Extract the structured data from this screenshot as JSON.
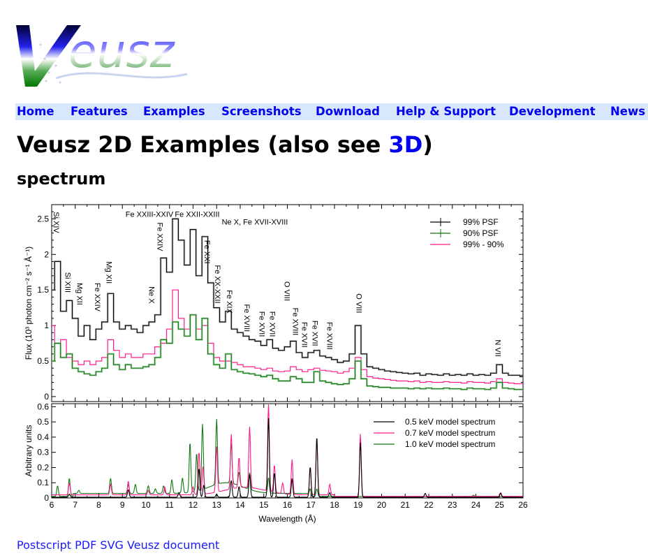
{
  "logo_text": "Veusz",
  "nav": [
    {
      "label": "Home"
    },
    {
      "label": "Features"
    },
    {
      "label": "Examples"
    },
    {
      "label": "Screenshots"
    },
    {
      "label": "Download"
    },
    {
      "label": "Help & Support"
    },
    {
      "label": "Development"
    },
    {
      "label": "News"
    }
  ],
  "page_title": {
    "text": "Veusz 2D Examples (also see ",
    "link": "3D",
    "close": ")"
  },
  "section_title": "spectrum",
  "downloads": [
    {
      "label": "Postscript"
    },
    {
      "label": "PDF"
    },
    {
      "label": "SVG"
    },
    {
      "label": "Veusz document"
    }
  ],
  "colors": {
    "black": "#000000",
    "green": "#117711",
    "pink": "#ff1a8c",
    "nav_bg": "#d8e7fb",
    "link": "#0000ee"
  },
  "chart_data": [
    {
      "type": "line",
      "panel": "top",
      "ylabel": "Flux (10³ photon cm⁻² s⁻¹ Å⁻¹)",
      "xlim": [
        6,
        26
      ],
      "ylim": [
        -0.07,
        2.7
      ],
      "yticks": [
        "0",
        "0.5",
        "1",
        "1.5",
        "2",
        "2.5"
      ],
      "legend_position": "top-right",
      "x_start": 6,
      "x_step": 0.25,
      "series": [
        {
          "name": "99% PSF",
          "color": "#000000",
          "values": [
            1.5,
            1.9,
            1.2,
            1.35,
            1.1,
            0.85,
            1.0,
            0.8,
            0.95,
            1.05,
            1.45,
            1.05,
            0.95,
            1.0,
            0.95,
            0.9,
            1.0,
            1.05,
            1.15,
            1.95,
            1.75,
            2.5,
            2.2,
            1.85,
            2.35,
            1.7,
            2.25,
            1.6,
            1.25,
            1.05,
            1.2,
            0.95,
            0.9,
            0.85,
            0.8,
            0.78,
            0.72,
            0.8,
            0.68,
            0.65,
            0.7,
            0.78,
            0.62,
            0.55,
            0.62,
            0.65,
            0.57,
            0.55,
            0.52,
            0.48,
            0.5,
            0.6,
            1.0,
            0.6,
            0.42,
            0.4,
            0.38,
            0.36,
            0.35,
            0.34,
            0.33,
            0.32,
            0.33,
            0.3,
            0.32,
            0.31,
            0.3,
            0.32,
            0.3,
            0.31,
            0.3,
            0.32,
            0.3,
            0.31,
            0.3,
            0.33,
            0.45,
            0.33,
            0.3,
            0.3,
            0.28
          ]
        },
        {
          "name": "90% PSF",
          "color": "#117711",
          "values": [
            0.5,
            0.75,
            0.55,
            0.6,
            0.4,
            0.35,
            0.32,
            0.3,
            0.35,
            0.4,
            0.6,
            0.45,
            0.38,
            0.45,
            0.4,
            0.4,
            0.42,
            0.45,
            0.55,
            0.8,
            0.75,
            1.05,
            0.95,
            0.85,
            1.15,
            0.8,
            1.1,
            0.6,
            0.45,
            0.4,
            0.6,
            0.38,
            0.35,
            0.33,
            0.32,
            0.3,
            0.28,
            0.3,
            0.25,
            0.22,
            0.22,
            0.28,
            0.25,
            0.2,
            0.2,
            0.35,
            0.22,
            0.2,
            0.18,
            0.17,
            0.18,
            0.25,
            0.5,
            0.25,
            0.15,
            0.14,
            0.13,
            0.13,
            0.12,
            0.12,
            0.12,
            0.11,
            0.12,
            0.11,
            0.12,
            0.11,
            0.11,
            0.12,
            0.11,
            0.11,
            0.1,
            0.12,
            0.11,
            0.11,
            0.1,
            0.12,
            0.2,
            0.12,
            0.11,
            0.1,
            0.1
          ]
        },
        {
          "name": "99% - 90%",
          "color": "#ff1a8c",
          "values": [
            1.0,
            0.75,
            0.8,
            0.55,
            0.5,
            0.45,
            0.5,
            0.45,
            0.5,
            0.55,
            0.8,
            0.65,
            0.55,
            0.6,
            0.55,
            0.55,
            0.6,
            0.6,
            0.7,
            0.75,
            0.95,
            1.5,
            1.1,
            0.95,
            1.15,
            0.95,
            1.0,
            0.75,
            0.55,
            0.5,
            0.5,
            0.48,
            0.45,
            0.42,
            0.42,
            0.4,
            0.38,
            0.4,
            0.36,
            0.35,
            0.36,
            0.42,
            0.38,
            0.35,
            0.38,
            0.4,
            0.37,
            0.36,
            0.35,
            0.33,
            0.35,
            0.4,
            0.55,
            0.38,
            0.28,
            0.26,
            0.25,
            0.24,
            0.23,
            0.22,
            0.22,
            0.21,
            0.22,
            0.2,
            0.21,
            0.2,
            0.2,
            0.21,
            0.2,
            0.2,
            0.19,
            0.21,
            0.2,
            0.2,
            0.19,
            0.21,
            0.25,
            0.2,
            0.19,
            0.18,
            0.18
          ]
        }
      ],
      "annotations": [
        {
          "text": "Si XIV",
          "x": 6.2,
          "y": 2.6,
          "rotated": true
        },
        {
          "text": "Si XIII",
          "x": 6.7,
          "y": 1.75,
          "rotated": true
        },
        {
          "text": "Mg XII",
          "x": 7.2,
          "y": 1.6,
          "rotated": true
        },
        {
          "text": "Fe XXIV",
          "x": 7.95,
          "y": 1.6,
          "rotated": true
        },
        {
          "text": "Mg XII",
          "x": 8.45,
          "y": 1.9,
          "rotated": true
        },
        {
          "text": "Ne X",
          "x": 10.25,
          "y": 1.55,
          "rotated": true
        },
        {
          "text": "Fe XXIV",
          "x": 10.6,
          "y": 2.45,
          "rotated": true
        },
        {
          "text": "Fe XXIII-XXIV",
          "x": 10.8,
          "y": 2.53,
          "rotated": false
        },
        {
          "text": "Fe XXII-XXIII",
          "x": 12.4,
          "y": 2.53,
          "rotated": false
        },
        {
          "text": "Ne X, Fe XVII-XVIII",
          "x": 13.75,
          "y": 2.42,
          "rotated": false
        },
        {
          "text": "Fe XXI",
          "x": 12.6,
          "y": 2.2,
          "rotated": true
        },
        {
          "text": "Fe XX-XXII",
          "x": 13.05,
          "y": 1.85,
          "rotated": true
        },
        {
          "text": "Fe XIX",
          "x": 13.55,
          "y": 1.5,
          "rotated": true
        },
        {
          "text": "Fe XVIII",
          "x": 14.3,
          "y": 1.3,
          "rotated": true
        },
        {
          "text": "Fe XVII",
          "x": 15.05,
          "y": 1.2,
          "rotated": true
        },
        {
          "text": "Fe XVII",
          "x": 15.27,
          "y": 1.2,
          "rotated": true
        },
        {
          "text": "O VIII",
          "x": 16.0,
          "y": 1.62,
          "rotated": true
        },
        {
          "text": "Fe XVIII",
          "x": 16.35,
          "y": 1.25,
          "rotated": true
        },
        {
          "text": "Fe XVII",
          "x": 16.85,
          "y": 1.05,
          "rotated": true
        },
        {
          "text": "Fe XVII",
          "x": 17.07,
          "y": 1.07,
          "rotated": true
        },
        {
          "text": "Fe XVIII",
          "x": 17.8,
          "y": 1.05,
          "rotated": true
        },
        {
          "text": "O VIII",
          "x": 19.05,
          "y": 1.45,
          "rotated": true
        },
        {
          "text": "N VII",
          "x": 24.95,
          "y": 0.8,
          "rotated": true
        }
      ]
    },
    {
      "type": "line",
      "panel": "bottom",
      "xlabel": "Wavelength (Å)",
      "ylabel": "Arbitrary units",
      "xlim": [
        6,
        26
      ],
      "ylim": [
        0,
        0.62
      ],
      "xticks": [
        "6",
        "7",
        "8",
        "9",
        "10",
        "11",
        "12",
        "13",
        "14",
        "15",
        "16",
        "17",
        "18",
        "19",
        "20",
        "21",
        "22",
        "23",
        "24",
        "25",
        "26"
      ],
      "yticks": [
        "0",
        "0.1",
        "0.2",
        "0.3",
        "0.4",
        "0.5",
        "0.6"
      ],
      "legend_position": "top-right",
      "series": [
        {
          "name": "0.5 keV model spectrum",
          "color": "#000000",
          "peaks": [
            [
              6.75,
              0.02
            ],
            [
              9.25,
              0.05
            ],
            [
              11.4,
              0.03
            ],
            [
              12.25,
              0.19
            ],
            [
              12.45,
              0.08
            ],
            [
              13.0,
              0.02
            ],
            [
              13.62,
              0.11
            ],
            [
              13.95,
              0.07
            ],
            [
              14.4,
              0.15
            ],
            [
              15.2,
              0.52
            ],
            [
              15.45,
              0.16
            ],
            [
              16.2,
              0.12
            ],
            [
              16.97,
              0.2
            ],
            [
              17.25,
              0.4
            ],
            [
              17.8,
              0.03
            ],
            [
              19.1,
              0.36
            ],
            [
              21.85,
              0.025
            ],
            [
              25.05,
              0.025
            ]
          ]
        },
        {
          "name": "0.7 keV model spectrum",
          "color": "#ff1a8c",
          "peaks": [
            [
              6.75,
              0.08
            ],
            [
              8.5,
              0.07
            ],
            [
              9.25,
              0.09
            ],
            [
              10.1,
              0.03
            ],
            [
              10.8,
              0.05
            ],
            [
              12.0,
              0.05
            ],
            [
              12.25,
              0.28
            ],
            [
              12.42,
              0.18
            ],
            [
              13.0,
              0.3
            ],
            [
              13.62,
              0.36
            ],
            [
              13.95,
              0.2
            ],
            [
              14.4,
              0.4
            ],
            [
              15.2,
              0.57
            ],
            [
              15.45,
              0.18
            ],
            [
              15.8,
              0.07
            ],
            [
              16.2,
              0.23
            ],
            [
              16.97,
              0.18
            ],
            [
              17.25,
              0.37
            ],
            [
              17.8,
              0.07
            ],
            [
              19.1,
              0.41
            ],
            [
              25.05,
              0.025
            ]
          ]
        },
        {
          "name": "1.0 keV model spectrum",
          "color": "#117711",
          "peaks": [
            [
              6.25,
              0.07
            ],
            [
              6.75,
              0.12
            ],
            [
              7.15,
              0.02
            ],
            [
              8.5,
              0.1
            ],
            [
              9.25,
              0.06
            ],
            [
              9.55,
              0.06
            ],
            [
              10.1,
              0.05
            ],
            [
              10.4,
              0.03
            ],
            [
              10.75,
              0.05
            ],
            [
              11.1,
              0.09
            ],
            [
              11.55,
              0.1
            ],
            [
              11.87,
              0.33
            ],
            [
              12.15,
              0.25
            ],
            [
              12.4,
              0.43
            ],
            [
              13.0,
              0.43
            ],
            [
              13.62,
              0.26
            ],
            [
              13.95,
              0.09
            ],
            [
              14.4,
              0.11
            ],
            [
              15.2,
              0.1
            ],
            [
              16.2,
              0.1
            ],
            [
              16.97,
              0.03
            ],
            [
              17.25,
              0.05
            ],
            [
              23.9,
              0.008
            ]
          ]
        }
      ]
    }
  ]
}
